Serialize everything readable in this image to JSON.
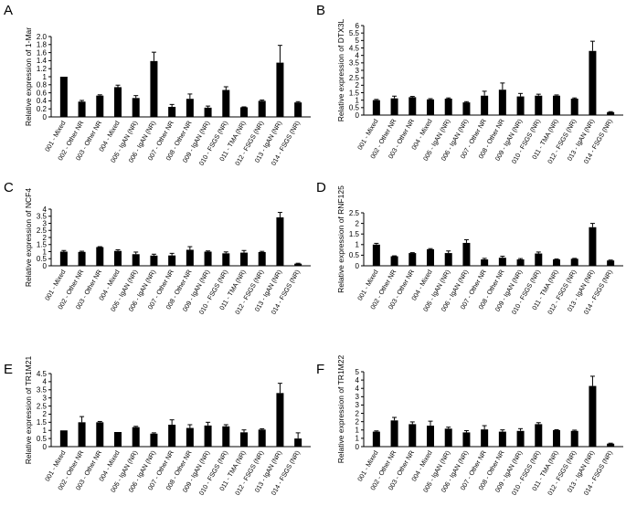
{
  "categories": [
    "001 - Mixed",
    "002 - Other NR",
    "003 - Other NR",
    "004 - Mixed",
    "005 - IgAN (NR)",
    "006 - IgAN (NR)",
    "007 - Other NR",
    "008 - Other NR",
    "009 - IgAN (NR)",
    "010 - FSGS (NR)",
    "011 - TMA (NR)",
    "012 - FSGS (NR)",
    "013 - IgAN (NR)",
    "014 - FSGS (NR)"
  ],
  "chart_data": [
    {
      "panel": "A",
      "type": "bar",
      "ylabel": "Relative expression of 1-Mar",
      "ylim": [
        0,
        2
      ],
      "yticks": [
        "0",
        "0.2",
        "0.4",
        "0.6",
        "0.8",
        "1",
        "1.2",
        "1.4",
        "1.6",
        "1.8",
        "2.0"
      ],
      "values": [
        1.0,
        0.38,
        0.53,
        0.74,
        0.47,
        1.39,
        0.25,
        0.45,
        0.23,
        0.67,
        0.24,
        0.4,
        1.35,
        0.36
      ],
      "errors": [
        0.0,
        0.03,
        0.02,
        0.05,
        0.06,
        0.22,
        0.06,
        0.12,
        0.04,
        0.08,
        0.01,
        0.02,
        0.43,
        0.02
      ]
    },
    {
      "panel": "B",
      "type": "bar",
      "ylabel": "Relative expression of DTX3L",
      "ylim": [
        0,
        6
      ],
      "yticks": [
        "0",
        "0.5",
        "1",
        "1.5",
        "2",
        "2.5",
        "3",
        "3.5",
        "4",
        "4.5",
        "5",
        "5.5",
        "6"
      ],
      "values": [
        1.0,
        1.12,
        1.2,
        1.05,
        1.1,
        0.85,
        1.3,
        1.7,
        1.25,
        1.3,
        1.3,
        1.1,
        4.3,
        0.2
      ],
      "errors": [
        0.05,
        0.15,
        0.05,
        0.05,
        0.05,
        0.05,
        0.3,
        0.45,
        0.2,
        0.1,
        0.05,
        0.05,
        0.65,
        0.03
      ]
    },
    {
      "panel": "C",
      "type": "bar",
      "ylabel": "Relative expression of NCF4",
      "ylim": [
        0,
        4
      ],
      "yticks": [
        "0",
        "0.5",
        "1",
        "1.5",
        "2",
        "2.5",
        "3",
        "3.5",
        "4"
      ],
      "values": [
        1.0,
        0.98,
        1.32,
        1.05,
        0.82,
        0.72,
        0.73,
        1.13,
        1.0,
        0.88,
        0.93,
        0.97,
        3.42,
        0.15
      ],
      "errors": [
        0.08,
        0.05,
        0.03,
        0.08,
        0.15,
        0.1,
        0.15,
        0.22,
        0.05,
        0.1,
        0.15,
        0.05,
        0.35,
        0.03
      ]
    },
    {
      "panel": "D",
      "type": "bar",
      "ylabel": "Relative expression of RNF125",
      "ylim": [
        0,
        2.5
      ],
      "yticks": [
        "0",
        "0.5",
        "1",
        "1.5",
        "2",
        "2.5"
      ],
      "values": [
        1.0,
        0.45,
        0.6,
        0.78,
        0.6,
        1.08,
        0.3,
        0.38,
        0.3,
        0.58,
        0.3,
        0.33,
        1.82,
        0.25
      ],
      "errors": [
        0.06,
        0.02,
        0.02,
        0.03,
        0.1,
        0.15,
        0.05,
        0.07,
        0.04,
        0.07,
        0.02,
        0.02,
        0.18,
        0.02
      ]
    },
    {
      "panel": "E",
      "type": "bar",
      "ylabel": "Relative expression of TR1M21",
      "ylim": [
        0,
        4.5
      ],
      "yticks": [
        "0",
        "0.5",
        "1",
        "1.5",
        "2",
        "2.5",
        "3",
        "3.5",
        "4",
        "4.5"
      ],
      "values": [
        1.0,
        1.5,
        1.5,
        0.9,
        1.2,
        0.8,
        1.35,
        1.15,
        1.3,
        1.25,
        0.88,
        1.05,
        3.3,
        0.5
      ],
      "errors": [
        0.0,
        0.35,
        0.05,
        0.0,
        0.05,
        0.05,
        0.3,
        0.2,
        0.2,
        0.1,
        0.15,
        0.05,
        0.6,
        0.35
      ]
    },
    {
      "panel": "F",
      "type": "bar",
      "ylabel": "Relative expression of TR1M22",
      "ylim": [
        0,
        5
      ],
      "yticks": [
        "0",
        "1",
        "1",
        "2",
        "2",
        "3",
        "3",
        "4",
        "4",
        "5"
      ],
      "values": [
        1.0,
        1.75,
        1.5,
        1.4,
        1.2,
        0.95,
        1.15,
        1.0,
        1.05,
        1.5,
        1.1,
        1.05,
        4.05,
        0.2
      ],
      "errors": [
        0.05,
        0.2,
        0.15,
        0.3,
        0.1,
        0.12,
        0.25,
        0.12,
        0.15,
        0.1,
        0.03,
        0.05,
        0.65,
        0.03
      ]
    }
  ]
}
